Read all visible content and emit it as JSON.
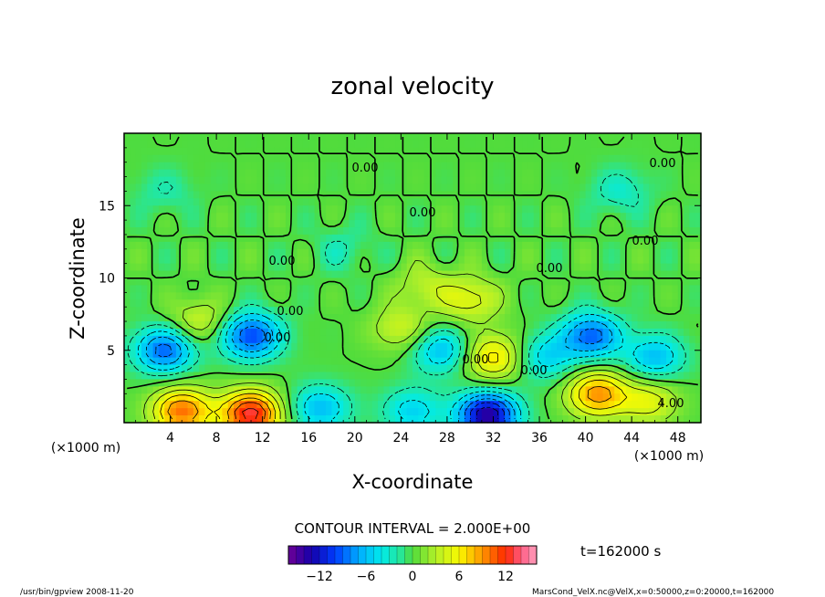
{
  "chart_data": {
    "type": "heatmap",
    "title": "zonal velocity",
    "xlabel": "X-coordinate",
    "ylabel": "Z-coordinate",
    "x_unit": "(×1000 m)",
    "y_unit": "(×1000 m)",
    "xlim": [
      0,
      50
    ],
    "ylim": [
      0,
      20
    ],
    "x_ticks": [
      4,
      8,
      12,
      16,
      20,
      24,
      28,
      32,
      36,
      40,
      44,
      48
    ],
    "y_ticks": [
      5,
      10,
      15
    ],
    "contour_interval_text": "CONTOUR INTERVAL = 2.000E+00",
    "time_text": "t=162000 s",
    "contour_labels": [
      "0.00",
      "0.00",
      "0.00",
      "0.00",
      "0.00",
      "0.00",
      "0.00",
      "0.00",
      "0.00",
      "0.00",
      "4.00"
    ],
    "colorbar": {
      "min": -16,
      "max": 16,
      "step": 1,
      "tick_values": [
        -12,
        -6,
        0,
        6,
        12
      ],
      "tick_labels": [
        "−12",
        "−6",
        "0",
        "6",
        "12"
      ]
    },
    "features": [
      {
        "x": 11.0,
        "z": 0.6,
        "value": 13
      },
      {
        "x": 5.0,
        "z": 0.8,
        "value": 10
      },
      {
        "x": 31.5,
        "z": 0.5,
        "value": -14
      },
      {
        "x": 41.0,
        "z": 2.0,
        "value": 9
      },
      {
        "x": 45.5,
        "z": 1.5,
        "value": 5
      },
      {
        "x": 17.0,
        "z": 1.0,
        "value": -6
      },
      {
        "x": 25.0,
        "z": 0.8,
        "value": -5
      },
      {
        "x": 3.5,
        "z": 5.0,
        "value": -9
      },
      {
        "x": 11.0,
        "z": 6.0,
        "value": -10
      },
      {
        "x": 40.5,
        "z": 6.0,
        "value": -9
      },
      {
        "x": 46.0,
        "z": 4.5,
        "value": -6
      },
      {
        "x": 32.0,
        "z": 4.5,
        "value": 7
      },
      {
        "x": 36.5,
        "z": 4.5,
        "value": -5
      },
      {
        "x": 27.5,
        "z": 5.0,
        "value": -6
      },
      {
        "x": 6.5,
        "z": 7.0,
        "value": 4
      },
      {
        "x": 24.0,
        "z": 6.5,
        "value": 4
      },
      {
        "x": 30.0,
        "z": 8.5,
        "value": 5
      },
      {
        "x": 43.0,
        "z": 16.0,
        "value": -3
      },
      {
        "x": 3.5,
        "z": 16.0,
        "value": -2
      },
      {
        "x": 19.0,
        "z": 12.0,
        "value": -2
      },
      {
        "x": 26.0,
        "z": 9.5,
        "value": 3
      }
    ]
  },
  "footer": {
    "left": "/usr/bin/gpview   2008-11-20",
    "right": "MarsCond_VelX.nc@VelX,x=0:50000,z=0:20000,t=162000"
  }
}
